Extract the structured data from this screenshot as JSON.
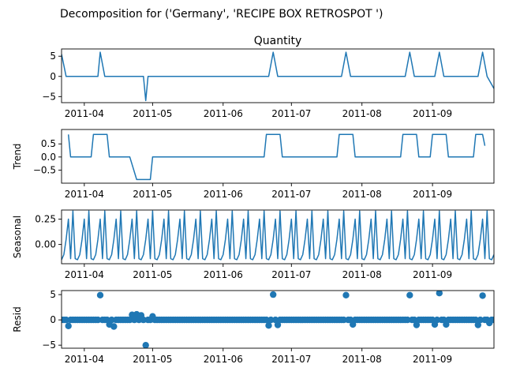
{
  "figure": {
    "suptitle": "Decomposition for ('Germany', 'RECIPE BOX RETROSPOT ')",
    "line_color": "#1f77b4"
  },
  "chart_data": [
    {
      "type": "line",
      "title": "Quantity",
      "ylabel": "",
      "x_range": [
        "2011-03-22",
        "2011-09-28"
      ],
      "ylim": [
        -6.5,
        6.8
      ],
      "yticks": [
        5,
        0,
        -5
      ],
      "ytick_labels": [
        "5",
        "0",
        "−5"
      ],
      "xticks": [
        "2011-04-01",
        "2011-05-01",
        "2011-06-01",
        "2011-07-01",
        "2011-08-01",
        "2011-09-01"
      ],
      "xtick_labels": [
        "2011-04",
        "2011-05",
        "2011-06",
        "2011-07",
        "2011-08",
        "2011-09"
      ],
      "series": [
        {
          "points": [
            [
              "2011-03-22",
              5.5
            ],
            [
              "2011-03-24",
              0
            ],
            [
              "2011-04-07",
              0
            ],
            [
              "2011-04-08",
              6
            ],
            [
              "2011-04-10",
              0
            ],
            [
              "2011-04-27",
              0
            ],
            [
              "2011-04-28",
              -6
            ],
            [
              "2011-04-29",
              0
            ],
            [
              "2011-06-21",
              0
            ],
            [
              "2011-06-23",
              6
            ],
            [
              "2011-06-25",
              0
            ],
            [
              "2011-07-23",
              0
            ],
            [
              "2011-07-25",
              6
            ],
            [
              "2011-07-27",
              0
            ],
            [
              "2011-08-20",
              0
            ],
            [
              "2011-08-22",
              6
            ],
            [
              "2011-08-24",
              0
            ],
            [
              "2011-09-02",
              0
            ],
            [
              "2011-09-04",
              6
            ],
            [
              "2011-09-06",
              0
            ],
            [
              "2011-09-21",
              0
            ],
            [
              "2011-09-23",
              6
            ],
            [
              "2011-09-25",
              0
            ],
            [
              "2011-09-28",
              -3
            ]
          ]
        }
      ]
    },
    {
      "type": "line",
      "title": "",
      "ylabel": "Trend",
      "x_range": [
        "2011-03-22",
        "2011-09-28"
      ],
      "ylim": [
        -1.0,
        1.05
      ],
      "yticks": [
        0.5,
        0.0,
        -0.5
      ],
      "ytick_labels": [
        "0.5",
        "0.0",
        "−0.5"
      ],
      "xticks": [
        "2011-04-01",
        "2011-05-01",
        "2011-06-01",
        "2011-07-01",
        "2011-08-01",
        "2011-09-01"
      ],
      "xtick_labels": [
        "2011-04",
        "2011-05",
        "2011-06",
        "2011-07",
        "2011-08",
        "2011-09"
      ],
      "series": [
        {
          "points": [
            [
              "2011-03-25",
              0.86
            ],
            [
              "2011-03-26",
              0
            ],
            [
              "2011-04-04",
              0
            ],
            [
              "2011-04-05",
              0.86
            ],
            [
              "2011-04-11",
              0.86
            ],
            [
              "2011-04-12",
              0
            ],
            [
              "2011-04-21",
              0
            ],
            [
              "2011-04-24",
              -0.86
            ],
            [
              "2011-04-30",
              -0.86
            ],
            [
              "2011-05-01",
              0
            ],
            [
              "2011-06-19",
              0
            ],
            [
              "2011-06-20",
              0.86
            ],
            [
              "2011-06-26",
              0.86
            ],
            [
              "2011-06-27",
              0
            ],
            [
              "2011-07-21",
              0
            ],
            [
              "2011-07-22",
              0.86
            ],
            [
              "2011-07-28",
              0.86
            ],
            [
              "2011-07-29",
              0
            ],
            [
              "2011-08-18",
              0
            ],
            [
              "2011-08-19",
              0.86
            ],
            [
              "2011-08-25",
              0.86
            ],
            [
              "2011-08-26",
              0
            ],
            [
              "2011-08-31",
              0
            ],
            [
              "2011-09-01",
              0.86
            ],
            [
              "2011-09-07",
              0.86
            ],
            [
              "2011-09-08",
              0
            ],
            [
              "2011-09-19",
              0
            ],
            [
              "2011-09-20",
              0.86
            ],
            [
              "2011-09-23",
              0.86
            ],
            [
              "2011-09-24",
              0.43
            ]
          ]
        }
      ]
    },
    {
      "type": "line",
      "title": "",
      "ylabel": "Seasonal",
      "x_range": [
        "2011-03-22",
        "2011-09-28"
      ],
      "ylim": [
        -0.19,
        0.34
      ],
      "yticks": [
        0.25,
        0.0
      ],
      "ytick_labels": [
        "0.25",
        "0.00"
      ],
      "xticks": [
        "2011-04-01",
        "2011-05-01",
        "2011-06-01",
        "2011-07-01",
        "2011-08-01",
        "2011-09-01"
      ],
      "xtick_labels": [
        "2011-04",
        "2011-05",
        "2011-06",
        "2011-07",
        "2011-08",
        "2011-09"
      ],
      "series": [
        {
          "start": "2011-03-22",
          "end": "2011-09-28",
          "period_days": 7,
          "pattern": [
            -0.15,
            -0.1,
            0.05,
            0.25,
            -0.14,
            0.33,
            -0.14
          ]
        }
      ]
    },
    {
      "type": "scatter",
      "title": "",
      "ylabel": "Resid",
      "x_range": [
        "2011-03-22",
        "2011-09-28"
      ],
      "ylim": [
        -5.6,
        5.8
      ],
      "yticks": [
        5,
        0,
        -5
      ],
      "ytick_labels": [
        "5",
        "0",
        "−5"
      ],
      "xticks": [
        "2011-04-01",
        "2011-05-01",
        "2011-06-01",
        "2011-07-01",
        "2011-08-01",
        "2011-09-01"
      ],
      "xtick_labels": [
        "2011-04",
        "2011-05",
        "2011-06",
        "2011-07",
        "2011-08",
        "2011-09"
      ],
      "zero_line": true,
      "outliers": [
        [
          "2011-03-25",
          -1.2
        ],
        [
          "2011-04-08",
          4.9
        ],
        [
          "2011-04-12",
          -0.9
        ],
        [
          "2011-04-14",
          -1.3
        ],
        [
          "2011-04-22",
          1.0
        ],
        [
          "2011-04-24",
          1.1
        ],
        [
          "2011-04-26",
          0.9
        ],
        [
          "2011-04-28",
          -5.0
        ],
        [
          "2011-05-01",
          0.7
        ],
        [
          "2011-06-21",
          -1.1
        ],
        [
          "2011-06-23",
          5.0
        ],
        [
          "2011-06-25",
          -1.0
        ],
        [
          "2011-07-25",
          4.9
        ],
        [
          "2011-07-28",
          -0.9
        ],
        [
          "2011-08-22",
          4.9
        ],
        [
          "2011-08-25",
          -1.0
        ],
        [
          "2011-09-02",
          -0.9
        ],
        [
          "2011-09-04",
          5.3
        ],
        [
          "2011-09-07",
          -0.9
        ],
        [
          "2011-09-21",
          -1.0
        ],
        [
          "2011-09-23",
          4.8
        ],
        [
          "2011-09-26",
          -0.6
        ]
      ],
      "baseline": {
        "start": "2011-03-22",
        "end": "2011-09-28",
        "value": 0.0
      }
    }
  ]
}
